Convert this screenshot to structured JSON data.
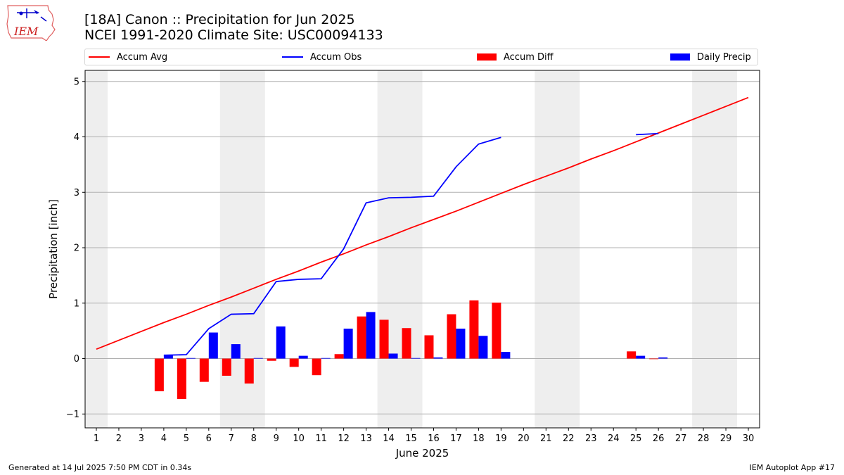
{
  "header": {
    "logo_text": "IEM",
    "title_line1": "[18A] Canon :: Precipitation for Jun 2025",
    "title_line2": "NCEI 1991-2020 Climate Site: USC00094133"
  },
  "legend": [
    {
      "label": "Accum Avg",
      "kind": "line",
      "color": "#ff0000"
    },
    {
      "label": "Accum Obs",
      "kind": "line",
      "color": "#0000ff"
    },
    {
      "label": "Accum Diff",
      "kind": "bar",
      "color": "#ff0000"
    },
    {
      "label": "Daily Precip",
      "kind": "bar",
      "color": "#0000ff"
    }
  ],
  "footer": {
    "left": "Generated at 14 Jul 2025 7:50 PM CDT in 0.34s",
    "right": "IEM Autoplot App #17"
  },
  "chart_data": {
    "type": "bar",
    "xlabel": "June 2025",
    "ylabel": "Precipitation [inch]",
    "x": [
      1,
      2,
      3,
      4,
      5,
      6,
      7,
      8,
      9,
      10,
      11,
      12,
      13,
      14,
      15,
      16,
      17,
      18,
      19,
      20,
      21,
      22,
      23,
      24,
      25,
      26,
      27,
      28,
      29,
      30
    ],
    "xlim": [
      0.5,
      30.5
    ],
    "ylim": [
      -1.25,
      5.2
    ],
    "yticks": [
      -1,
      0,
      1,
      2,
      3,
      4,
      5
    ],
    "grid": "horizontal",
    "legend_position": "top",
    "weekend_shading": [
      [
        0.5,
        1.5
      ],
      [
        6.5,
        8.5
      ],
      [
        13.5,
        15.5
      ],
      [
        20.5,
        22.5
      ],
      [
        27.5,
        29.5
      ]
    ],
    "series": [
      {
        "name": "Accum Avg",
        "kind": "line",
        "color": "#ff0000",
        "values": [
          0.17,
          0.33,
          0.49,
          0.65,
          0.8,
          0.96,
          1.11,
          1.27,
          1.43,
          1.58,
          1.74,
          1.89,
          2.05,
          2.2,
          2.36,
          2.51,
          2.66,
          2.82,
          2.98,
          3.14,
          3.29,
          3.44,
          3.6,
          3.75,
          3.91,
          4.07,
          4.23,
          4.39,
          4.55,
          4.71
        ]
      },
      {
        "name": "Accum Obs",
        "kind": "line",
        "color": "#0000ff",
        "values": [
          null,
          null,
          null,
          0.06,
          0.07,
          0.54,
          0.8,
          0.81,
          1.39,
          1.43,
          1.44,
          1.98,
          2.81,
          2.9,
          2.91,
          2.93,
          3.46,
          3.87,
          3.99,
          null,
          null,
          null,
          null,
          null,
          4.04,
          4.06,
          null,
          null,
          null,
          null
        ]
      },
      {
        "name": "Accum Diff",
        "kind": "bar",
        "color": "#ff0000",
        "values": [
          null,
          null,
          null,
          -0.59,
          -0.73,
          -0.42,
          -0.31,
          -0.45,
          -0.04,
          -0.15,
          -0.3,
          0.08,
          0.76,
          0.7,
          0.55,
          0.42,
          0.8,
          1.05,
          1.01,
          null,
          null,
          null,
          null,
          null,
          0.13,
          -0.01,
          null,
          null,
          null,
          null
        ]
      },
      {
        "name": "Daily Precip",
        "kind": "bar",
        "color": "#0000ff",
        "values": [
          null,
          null,
          null,
          0.06,
          0.01,
          0.47,
          0.26,
          0.01,
          0.58,
          0.05,
          0.01,
          0.54,
          0.84,
          0.09,
          0.01,
          0.02,
          0.54,
          0.41,
          0.12,
          null,
          null,
          null,
          null,
          null,
          0.05,
          0.02,
          null,
          null,
          null,
          null
        ]
      }
    ]
  }
}
